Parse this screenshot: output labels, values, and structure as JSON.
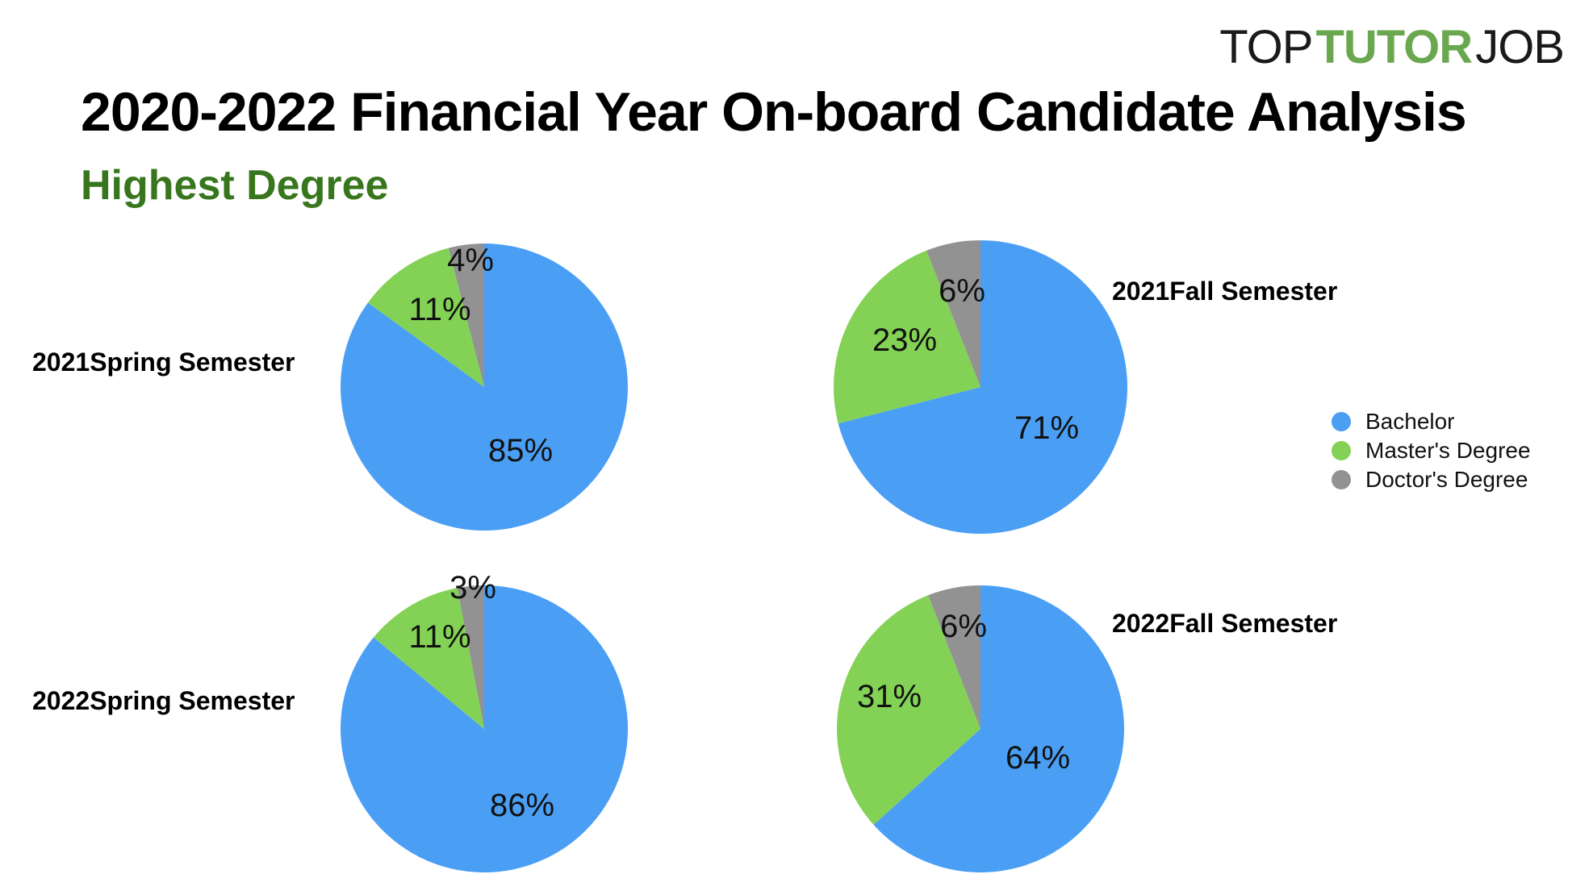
{
  "logo": {
    "part1": "TOP",
    "part2": "TUTOR",
    "part3": "JOB"
  },
  "title": "2020-2022 Financial Year On-board Candidate Analysis",
  "subtitle": "Highest Degree",
  "colors": {
    "Bachelor": "#4a9ff5",
    "Master's Degree": "#83d255",
    "Doctor's Degree": "#929292",
    "brand_green": "#6aa84f",
    "subtitle_green": "#38761d"
  },
  "legend": {
    "position": "right",
    "items": [
      "Bachelor",
      "Master's Degree",
      "Doctor's Degree"
    ]
  },
  "chart_data": [
    {
      "type": "pie",
      "title": "2021Spring Semester",
      "categories": [
        "Bachelor",
        "Master's Degree",
        "Doctor's Degree"
      ],
      "values": [
        85,
        11,
        4
      ],
      "labels": [
        "85%",
        "11%",
        "4%"
      ]
    },
    {
      "type": "pie",
      "title": "2021Fall Semester",
      "categories": [
        "Bachelor",
        "Master's Degree",
        "Doctor's Degree"
      ],
      "values": [
        71,
        23,
        6
      ],
      "labels": [
        "71%",
        "23%",
        "6%"
      ]
    },
    {
      "type": "pie",
      "title": "2022Spring Semester",
      "categories": [
        "Bachelor",
        "Master's Degree",
        "Doctor's Degree"
      ],
      "values": [
        86,
        11,
        3
      ],
      "labels": [
        "86%",
        "11%",
        "3%"
      ]
    },
    {
      "type": "pie",
      "title": "2022Fall Semester",
      "categories": [
        "Bachelor",
        "Master's Degree",
        "Doctor's Degree"
      ],
      "values": [
        64,
        31,
        6
      ],
      "labels": [
        "64%",
        "31%",
        "6%"
      ]
    }
  ]
}
